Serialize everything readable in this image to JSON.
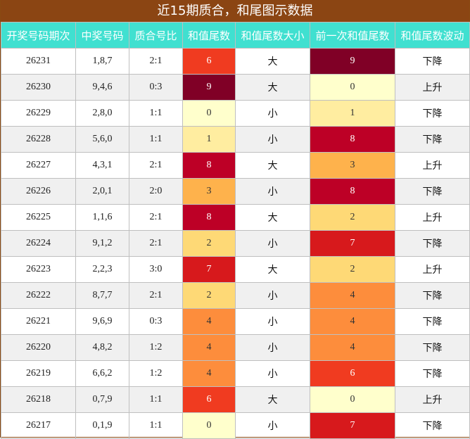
{
  "title": "近15期质合，和尾图示数据",
  "columns": [
    "开奖号码期次",
    "中奖号码",
    "质合号比",
    "和值尾数",
    "和值尾数大小",
    "前一次和值尾数",
    "和值尾数波动"
  ],
  "heat_colors": {
    "0": {
      "bg": "#ffffcc",
      "fg": "#333333"
    },
    "1": {
      "bg": "#ffeda0",
      "fg": "#333333"
    },
    "2": {
      "bg": "#fed976",
      "fg": "#333333"
    },
    "3": {
      "bg": "#feb24c",
      "fg": "#333333"
    },
    "4": {
      "bg": "#fd8d3c",
      "fg": "#333333"
    },
    "6": {
      "bg": "#f03b20",
      "fg": "#ffffff"
    },
    "7": {
      "bg": "#d7191c",
      "fg": "#ffffff"
    },
    "8": {
      "bg": "#bd0026",
      "fg": "#ffffff"
    },
    "9": {
      "bg": "#800026",
      "fg": "#ffffff"
    }
  },
  "rows": [
    {
      "issue": "26231",
      "numbers": "1,8,7",
      "ratio": "2:1",
      "tail": "6",
      "size": "大",
      "prev_tail": "9",
      "wave": "下降"
    },
    {
      "issue": "26230",
      "numbers": "9,4,6",
      "ratio": "0:3",
      "tail": "9",
      "size": "大",
      "prev_tail": "0",
      "wave": "上升"
    },
    {
      "issue": "26229",
      "numbers": "2,8,0",
      "ratio": "1:1",
      "tail": "0",
      "size": "小",
      "prev_tail": "1",
      "wave": "下降"
    },
    {
      "issue": "26228",
      "numbers": "5,6,0",
      "ratio": "1:1",
      "tail": "1",
      "size": "小",
      "prev_tail": "8",
      "wave": "下降"
    },
    {
      "issue": "26227",
      "numbers": "4,3,1",
      "ratio": "2:1",
      "tail": "8",
      "size": "大",
      "prev_tail": "3",
      "wave": "上升"
    },
    {
      "issue": "26226",
      "numbers": "2,0,1",
      "ratio": "2:0",
      "tail": "3",
      "size": "小",
      "prev_tail": "8",
      "wave": "下降"
    },
    {
      "issue": "26225",
      "numbers": "1,1,6",
      "ratio": "2:1",
      "tail": "8",
      "size": "大",
      "prev_tail": "2",
      "wave": "上升"
    },
    {
      "issue": "26224",
      "numbers": "9,1,2",
      "ratio": "2:1",
      "tail": "2",
      "size": "小",
      "prev_tail": "7",
      "wave": "下降"
    },
    {
      "issue": "26223",
      "numbers": "2,2,3",
      "ratio": "3:0",
      "tail": "7",
      "size": "大",
      "prev_tail": "2",
      "wave": "上升"
    },
    {
      "issue": "26222",
      "numbers": "8,7,7",
      "ratio": "2:1",
      "tail": "2",
      "size": "小",
      "prev_tail": "4",
      "wave": "下降"
    },
    {
      "issue": "26221",
      "numbers": "9,6,9",
      "ratio": "0:3",
      "tail": "4",
      "size": "小",
      "prev_tail": "4",
      "wave": "下降"
    },
    {
      "issue": "26220",
      "numbers": "4,8,2",
      "ratio": "1:2",
      "tail": "4",
      "size": "小",
      "prev_tail": "4",
      "wave": "下降"
    },
    {
      "issue": "26219",
      "numbers": "6,6,2",
      "ratio": "1:2",
      "tail": "4",
      "size": "小",
      "prev_tail": "6",
      "wave": "下降"
    },
    {
      "issue": "26218",
      "numbers": "0,7,9",
      "ratio": "1:1",
      "tail": "6",
      "size": "大",
      "prev_tail": "0",
      "wave": "上升"
    },
    {
      "issue": "26217",
      "numbers": "0,1,9",
      "ratio": "1:1",
      "tail": "0",
      "size": "小",
      "prev_tail": "7",
      "wave": "下降"
    }
  ]
}
